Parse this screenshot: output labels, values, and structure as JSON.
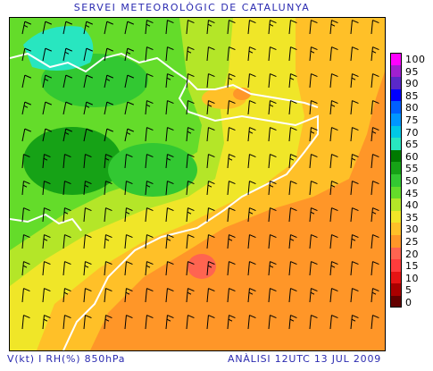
{
  "header": {
    "title": "SERVEI METEOROLÒGIC DE CATALUNYA"
  },
  "footer": {
    "variable": "V(kt) I RH(%) 850hPa",
    "analysis": "ANÀLISI 12UTC 13 JUL 2009"
  },
  "legend": {
    "items": [
      {
        "label": "100",
        "color": "#ff00ff"
      },
      {
        "label": "95",
        "color": "#a020d0"
      },
      {
        "label": "90",
        "color": "#5a28c8"
      },
      {
        "label": "85",
        "color": "#0000ff"
      },
      {
        "label": "80",
        "color": "#0060ff"
      },
      {
        "label": "75",
        "color": "#0096ff"
      },
      {
        "label": "70",
        "color": "#00c8e6"
      },
      {
        "label": "65",
        "color": "#28e6c0"
      },
      {
        "label": "60",
        "color": "#007a00"
      },
      {
        "label": "55",
        "color": "#16a216"
      },
      {
        "label": "50",
        "color": "#32c832"
      },
      {
        "label": "45",
        "color": "#64dc2a"
      },
      {
        "label": "40",
        "color": "#b4e628"
      },
      {
        "label": "35",
        "color": "#f0e628"
      },
      {
        "label": "30",
        "color": "#ffc028"
      },
      {
        "label": "25",
        "color": "#ff9628"
      },
      {
        "label": "20",
        "color": "#ff6450"
      },
      {
        "label": "15",
        "color": "#ff3c3c"
      },
      {
        "label": "10",
        "color": "#e61414"
      },
      {
        "label": "5",
        "color": "#aa0000"
      },
      {
        "label": "0",
        "color": "#640000"
      }
    ]
  }
}
